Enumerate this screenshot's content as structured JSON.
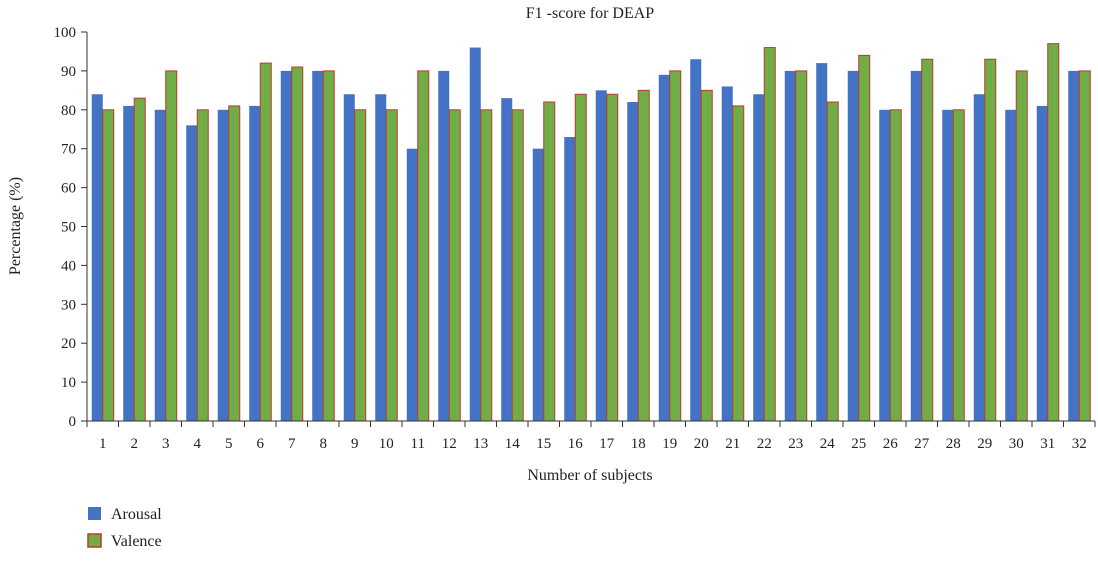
{
  "chart_data": {
    "type": "bar",
    "title": "F1 -score for DEAP",
    "xlabel": "Number of subjects",
    "ylabel": "Percentage (%)",
    "ylim": [
      0,
      100
    ],
    "yticks": [
      0,
      10,
      20,
      30,
      40,
      50,
      60,
      70,
      80,
      90,
      100
    ],
    "grid": false,
    "legend_position": "bottom-left",
    "categories": [
      "1",
      "2",
      "3",
      "4",
      "5",
      "6",
      "7",
      "8",
      "9",
      "10",
      "11",
      "12",
      "13",
      "14",
      "15",
      "16",
      "17",
      "18",
      "19",
      "20",
      "21",
      "22",
      "23",
      "24",
      "25",
      "26",
      "27",
      "28",
      "29",
      "30",
      "31",
      "32"
    ],
    "series": [
      {
        "name": "Arousal",
        "color": "#4472C4",
        "values": [
          84,
          81,
          80,
          76,
          80,
          81,
          90,
          90,
          84,
          84,
          70,
          90,
          96,
          83,
          70,
          73,
          85,
          82,
          89,
          93,
          86,
          84,
          90,
          92,
          90,
          80,
          90,
          80,
          84,
          80,
          81,
          90
        ]
      },
      {
        "name": "Valence",
        "color": "#70AD47",
        "edge_color": "#C0392B",
        "values": [
          80,
          83,
          90,
          80,
          81,
          92,
          91,
          90,
          80,
          80,
          90,
          80,
          80,
          80,
          82,
          84,
          84,
          85,
          90,
          85,
          81,
          96,
          90,
          82,
          94,
          80,
          93,
          80,
          93,
          90,
          97,
          90
        ]
      }
    ]
  }
}
